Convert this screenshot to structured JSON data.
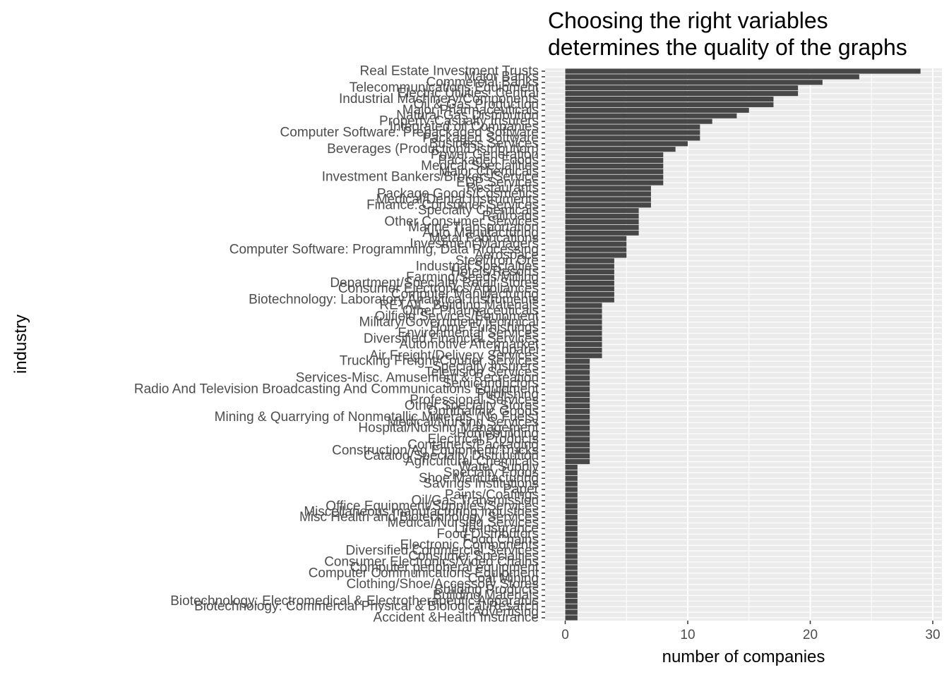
{
  "chart_data": {
    "type": "bar",
    "orientation": "horizontal",
    "title_lines": [
      "Choosing the right variables",
      "determines the quality of the graphs"
    ],
    "xlabel": "number of companies",
    "ylabel": "industry",
    "xlim": [
      0,
      30
    ],
    "x_ticks": [
      0,
      10,
      20,
      30
    ],
    "grid": true,
    "bar_color": "#474747",
    "grid_color": "#ebebeb",
    "categories": [
      "Real Estate Investment Trusts",
      "Major Banks",
      "Commercial Banks",
      "Telecommunications Equipment",
      "Electric Utilities: Central",
      "Industrial Machinery/Components",
      "Oil & Gas Production",
      "Major Pharmaceuticals",
      "Natural Gas Distribution",
      "Property-Casualty Insurers",
      "Integrated oil Companies",
      "Computer Software: Prepackaged Software",
      "Packaged Software",
      "Business Services",
      "Beverages (Production/Distribution)",
      "Power Generation",
      "Packaged Foods",
      "Medical Specialities",
      "Major Chemicals",
      "Investment Bankers/Brokers/Service",
      "EDP Services",
      "Restaurants",
      "Package Goods/Cosmetics",
      "Medical/Dental Instruments",
      "Finance: Consumer Services",
      "Specialty Chemicals",
      "Railroads",
      "Other Consumer Services",
      "Marine Transportation",
      "Auto Manufacturing",
      "Metal Fabrications",
      "Investment Managers",
      "Computer Software: Programming, Data Processing",
      "Aerospace",
      "Steel/Iron Ore",
      "Industrial Specialties",
      "Hotels/Resorts",
      "Farming/Seeds/Milling",
      "Department/Specialty Retail Stores",
      "Consumer Electronics/Appliances",
      "Computer Manufacturing",
      "Biotechnology: Laboratory Analytical Instruments",
      "RETAIL: Building Materials",
      "Other Pharmaceuticals",
      "Oilfield Services/Equipment",
      "Military/Government/Technical",
      "Home Furnishings",
      "Environmental Services",
      "Diversified Financial Services",
      "Automotive Aftermarket",
      "Apparel",
      "Air Freight/Delivery Services",
      "Trucking Freight/Courier Services",
      "Specialty Insurers",
      "Television Services",
      "Services-Misc. Amusement & Recreation",
      "Semiconductors",
      "Radio And Television Broadcasting And Communications Equipment",
      "Publishing",
      "Professional Services",
      "Other Specialty Stores",
      "Ophthalmic Goods",
      "Mining & Quarrying of Nonmetallic Minerals (No Fuels)",
      "Medical/Nursing Services",
      "Hospital/Nursing Management",
      "Homebuilding",
      "Electrical Products",
      "Containers/Packaging",
      "Construction/Ag Equipment/Trucks",
      "Catalog/Specialty Distribution",
      "Agricultural Chemicals",
      "Water Supply",
      "Specialty Foods",
      "Shoe Manufacturing",
      "Savings Institutions",
      "Paper",
      "Paints/Coatings",
      "Oil/Gas Transmission",
      "Office Equipment/Supplies/Services",
      "Miscellaneous manufacturing industries",
      "Misc Health and Biotechnology Services",
      "Medical/Nursing Services",
      "Life Insurance",
      "Food Distributors",
      "Food Chains",
      "Electronic Components",
      "Diversified Commercial Services",
      "Consumer Specialties",
      "Consumer Electronics/Video Chains",
      "Computer peripheral equipment",
      "Computer Communications Equipment",
      "Coal Mining",
      "Clothing/Shoe/Accessory Stores",
      "Building Products",
      "Building Materials",
      "Biotechnology: Electromedical & Electrotherapeutic Apparatus",
      "Biotechnology: Commercial Physical & Biological Resarch",
      "Advertising",
      "Accident &Health Insurance"
    ],
    "values": [
      29,
      24,
      21,
      19,
      19,
      17,
      17,
      15,
      14,
      12,
      11,
      11,
      11,
      10,
      9,
      8,
      8,
      8,
      8,
      8,
      8,
      7,
      7,
      7,
      7,
      6,
      6,
      6,
      6,
      6,
      5,
      5,
      5,
      5,
      4,
      4,
      4,
      4,
      4,
      4,
      4,
      4,
      3,
      3,
      3,
      3,
      3,
      3,
      3,
      3,
      3,
      3,
      2,
      2,
      2,
      2,
      2,
      2,
      2,
      2,
      2,
      2,
      2,
      2,
      2,
      2,
      2,
      2,
      2,
      2,
      2,
      1,
      1,
      1,
      1,
      1,
      1,
      1,
      1,
      1,
      1,
      1,
      1,
      1,
      1,
      1,
      1,
      1,
      1,
      1,
      1,
      1,
      1,
      1,
      1,
      1,
      1,
      1,
      1
    ]
  }
}
